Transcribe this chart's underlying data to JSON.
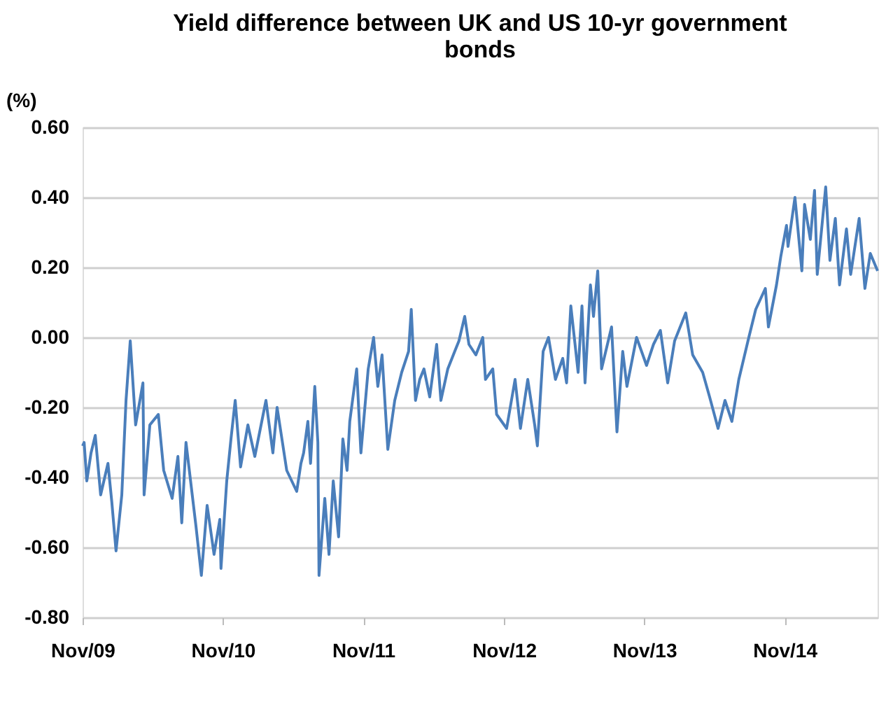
{
  "chart_data": {
    "type": "line",
    "title": "Yield difference between UK and US 10-yr government bonds",
    "ylabel": "(%)",
    "x": [
      "2009-11-01",
      "2009-11-05",
      "2009-11-12",
      "2009-11-23",
      "2009-12-04",
      "2009-12-18",
      "2010-01-06",
      "2010-01-16",
      "2010-01-27",
      "2010-02-11",
      "2010-02-22",
      "2010-03-05",
      "2010-03-19",
      "2010-04-07",
      "2010-04-10",
      "2010-04-25",
      "2010-05-17",
      "2010-05-31",
      "2010-06-22",
      "2010-07-07",
      "2010-07-17",
      "2010-07-28",
      "2010-08-23",
      "2010-09-06",
      "2010-09-21",
      "2010-10-09",
      "2010-10-24",
      "2010-10-27",
      "2010-11-11",
      "2010-11-22",
      "2010-12-03",
      "2010-12-17",
      "2011-01-05",
      "2011-01-23",
      "2011-02-21",
      "2011-03-11",
      "2011-03-22",
      "2011-04-16",
      "2011-05-12",
      "2011-05-23",
      "2011-05-30",
      "2011-06-10",
      "2011-06-17",
      "2011-06-28",
      "2011-07-06",
      "2011-07-09",
      "2011-07-24",
      "2011-08-04",
      "2011-08-15",
      "2011-08-29",
      "2011-09-09",
      "2011-09-20",
      "2011-09-27",
      "2011-10-15",
      "2011-10-26",
      "2011-11-14",
      "2011-11-28",
      "2011-12-09",
      "2011-12-20",
      "2012-01-04",
      "2012-01-22",
      "2012-02-09",
      "2012-02-27",
      "2012-03-05",
      "2012-03-16",
      "2012-03-27",
      "2012-04-07",
      "2012-04-22",
      "2012-05-10",
      "2012-05-21",
      "2012-06-08",
      "2012-06-26",
      "2012-07-07",
      "2012-07-22",
      "2012-08-02",
      "2012-08-20",
      "2012-09-07",
      "2012-09-14",
      "2012-10-03",
      "2012-10-13",
      "2012-11-08",
      "2012-11-30",
      "2012-12-14",
      "2013-01-02",
      "2013-01-20",
      "2013-01-27",
      "2013-02-11",
      "2013-02-25",
      "2013-03-15",
      "2013-04-03",
      "2013-04-13",
      "2013-04-24",
      "2013-05-13",
      "2013-05-23",
      "2013-05-31",
      "2013-06-14",
      "2013-06-22",
      "2013-07-03",
      "2013-07-13",
      "2013-08-08",
      "2013-08-22",
      "2013-09-06",
      "2013-09-17",
      "2013-10-12",
      "2013-11-07",
      "2013-11-25",
      "2013-12-13",
      "2014-01-01",
      "2014-01-19",
      "2014-02-17",
      "2014-03-07",
      "2014-04-02",
      "2014-04-20",
      "2014-05-12",
      "2014-05-30",
      "2014-06-17",
      "2014-07-05",
      "2014-07-31",
      "2014-08-18",
      "2014-09-12",
      "2014-09-20",
      "2014-10-11",
      "2014-10-22",
      "2014-11-06",
      "2014-11-10",
      "2014-11-28",
      "2014-12-16",
      "2014-12-23",
      "2015-01-07",
      "2015-01-18",
      "2015-01-25",
      "2015-02-16",
      "2015-02-27",
      "2015-03-13",
      "2015-03-24",
      "2015-04-11",
      "2015-04-22",
      "2015-05-14",
      "2015-05-29",
      "2015-06-12",
      "2015-07-01"
    ],
    "series": [
      {
        "color": "#4a7ebb",
        "values": [
          -0.31,
          -0.3,
          -0.41,
          -0.33,
          -0.28,
          -0.45,
          -0.36,
          -0.47,
          -0.61,
          -0.45,
          -0.18,
          -0.01,
          -0.25,
          -0.13,
          -0.45,
          -0.25,
          -0.22,
          -0.38,
          -0.46,
          -0.34,
          -0.53,
          -0.3,
          -0.54,
          -0.68,
          -0.48,
          -0.62,
          -0.52,
          -0.66,
          -0.41,
          -0.29,
          -0.18,
          -0.37,
          -0.25,
          -0.34,
          -0.18,
          -0.33,
          -0.2,
          -0.38,
          -0.44,
          -0.36,
          -0.33,
          -0.24,
          -0.36,
          -0.14,
          -0.3,
          -0.68,
          -0.46,
          -0.62,
          -0.41,
          -0.57,
          -0.29,
          -0.38,
          -0.24,
          -0.09,
          -0.33,
          -0.09,
          0.0,
          -0.14,
          -0.05,
          -0.32,
          -0.18,
          -0.1,
          -0.04,
          0.08,
          -0.18,
          -0.12,
          -0.09,
          -0.17,
          -0.02,
          -0.18,
          -0.09,
          -0.04,
          -0.01,
          0.06,
          -0.02,
          -0.05,
          0.0,
          -0.12,
          -0.09,
          -0.22,
          -0.26,
          -0.12,
          -0.26,
          -0.12,
          -0.25,
          -0.31,
          -0.04,
          0.0,
          -0.12,
          -0.06,
          -0.13,
          0.09,
          -0.1,
          0.09,
          -0.13,
          0.15,
          0.06,
          0.19,
          -0.09,
          0.03,
          -0.27,
          -0.04,
          -0.14,
          0.0,
          -0.08,
          -0.02,
          0.02,
          -0.13,
          -0.01,
          0.07,
          -0.05,
          -0.1,
          -0.17,
          -0.26,
          -0.18,
          -0.24,
          -0.12,
          0.0,
          0.08,
          0.14,
          0.03,
          0.15,
          0.23,
          0.32,
          0.26,
          0.4,
          0.19,
          0.38,
          0.28,
          0.42,
          0.18,
          0.43,
          0.22,
          0.34,
          0.15,
          0.31,
          0.18,
          0.34,
          0.14,
          0.24,
          0.19
        ]
      }
    ],
    "xlim": [
      "2009-11-01",
      "2015-07-01"
    ],
    "xticks": [
      {
        "value": "2009-11",
        "label": "Nov/09"
      },
      {
        "value": "2010-11",
        "label": "Nov/10"
      },
      {
        "value": "2011-11",
        "label": "Nov/11"
      },
      {
        "value": "2012-11",
        "label": "Nov/12"
      },
      {
        "value": "2013-11",
        "label": "Nov/13"
      },
      {
        "value": "2014-11",
        "label": "Nov/14"
      }
    ],
    "ylim": [
      -0.8,
      0.6
    ],
    "yticks": [
      {
        "value": -0.8,
        "label": "-0.80"
      },
      {
        "value": -0.6,
        "label": "-0.60"
      },
      {
        "value": -0.4,
        "label": "-0.40"
      },
      {
        "value": -0.2,
        "label": "-0.20"
      },
      {
        "value": 0,
        "label": "0.00"
      },
      {
        "value": 0.2,
        "label": "0.20"
      },
      {
        "value": 0.4,
        "label": "0.40"
      },
      {
        "value": 0.6,
        "label": "0.60"
      }
    ],
    "grid": "y"
  }
}
